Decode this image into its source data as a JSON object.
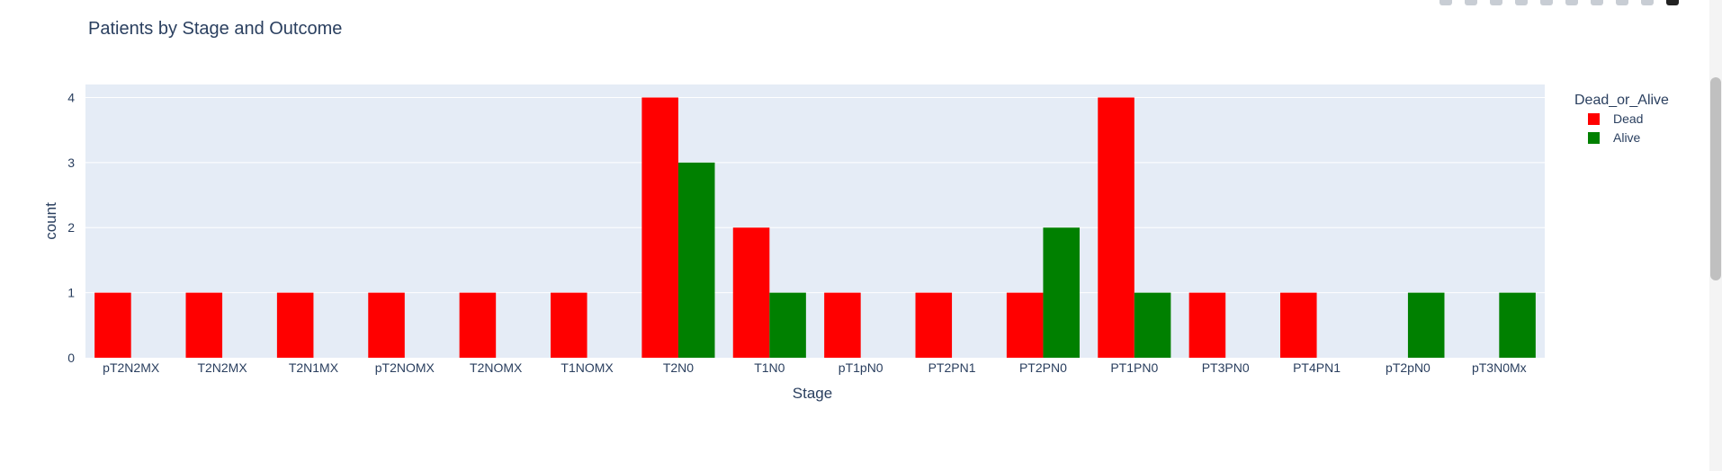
{
  "chart_data": {
    "type": "bar",
    "title": "Patients by Stage and Outcome",
    "xlabel": "Stage",
    "ylabel": "count",
    "ylim": [
      0,
      4.2
    ],
    "yticks": [
      0,
      1,
      2,
      3,
      4
    ],
    "grid": true,
    "legend_title": "Dead_or_Alive",
    "legend_position": "top-right",
    "categories": [
      "pT2N2MX",
      "T2N2MX",
      "T2N1MX",
      "pT2NOMX",
      "T2NOMX",
      "T1NOMX",
      "T2N0",
      "T1N0",
      "pT1pN0",
      "PT2PN1",
      "PT2PN0",
      "PT1PN0",
      "PT3PN0",
      "PT4PN1",
      "pT2pN0",
      "pT3N0Mx"
    ],
    "series": [
      {
        "name": "Dead",
        "color": "#ff0000",
        "values": [
          1,
          1,
          1,
          1,
          1,
          1,
          4,
          2,
          1,
          1,
          1,
          4,
          1,
          1,
          0,
          0
        ]
      },
      {
        "name": "Alive",
        "color": "#008000",
        "values": [
          0,
          0,
          0,
          0,
          0,
          0,
          3,
          1,
          0,
          0,
          2,
          1,
          0,
          0,
          1,
          1
        ]
      }
    ],
    "plot_background": "#e5ecf6"
  }
}
